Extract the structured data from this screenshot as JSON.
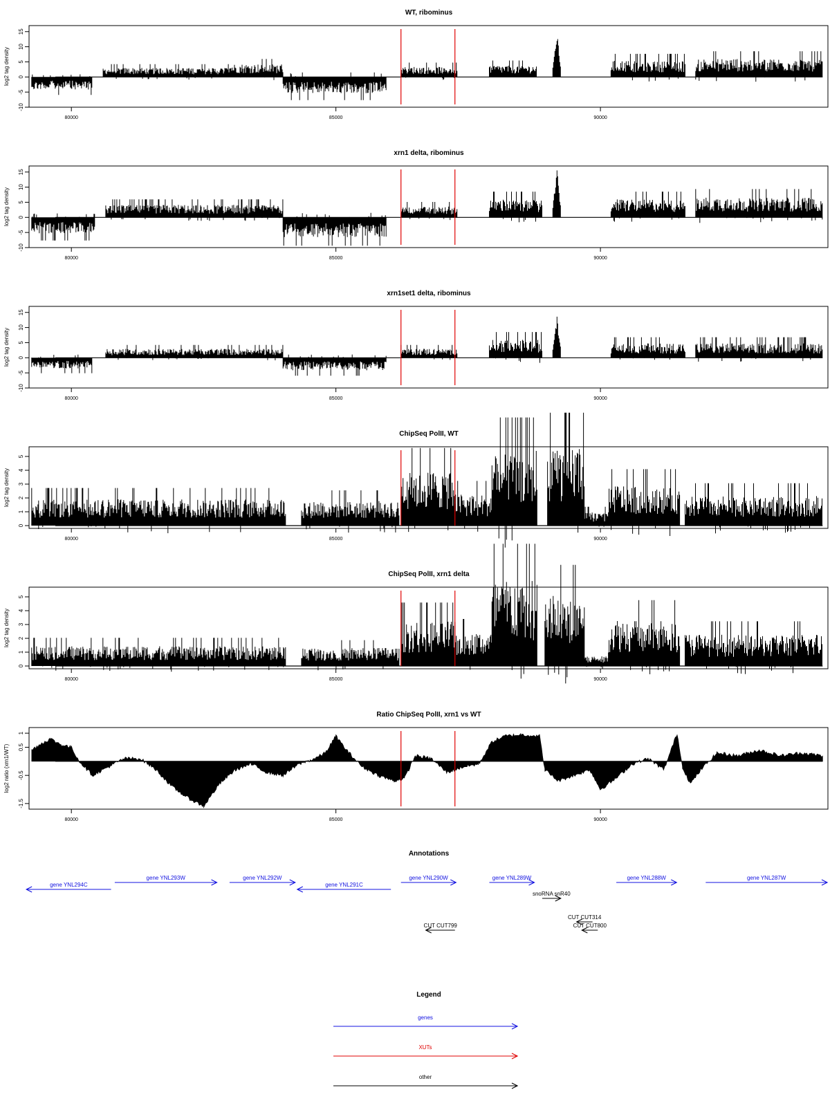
{
  "colors": {
    "signal": "#000000",
    "marker": "#e00000",
    "genes": "#1010e0",
    "xuts": "#e00000",
    "other": "#000000"
  },
  "chart_data": [
    {
      "type": "area",
      "title": "WT, ribominus",
      "ylabel": "log2 tag density",
      "xlim": [
        79200,
        94300
      ],
      "ylim": [
        -10,
        17
      ],
      "yticks": [
        -10,
        -5,
        0,
        5,
        10,
        15
      ],
      "xticks": [
        80000,
        85000,
        90000
      ],
      "vlines": [
        86230,
        87250
      ],
      "segments": [
        {
          "x": [
            79250,
            80400
          ],
          "v": -3.5
        },
        {
          "x": [
            80600,
            83000
          ],
          "v": 2.5
        },
        {
          "x": [
            83000,
            83900
          ],
          "v": 0.5
        },
        {
          "x": [
            82900,
            84000
          ],
          "v": 3.5
        },
        {
          "x": [
            84000,
            85950
          ],
          "v": -4.5
        },
        {
          "x": [
            86230,
            87300
          ],
          "v": 2.8
        },
        {
          "x": [
            87900,
            88800
          ],
          "v": 3.2
        },
        {
          "x": [
            89100,
            89250
          ],
          "v": 14
        },
        {
          "x": [
            90200,
            91600
          ],
          "v": 4.5
        },
        {
          "x": [
            91800,
            94200
          ],
          "v": 5
        }
      ]
    },
    {
      "type": "area",
      "title": "xrn1 delta, ribominus",
      "ylabel": "log2 tag density",
      "xlim": [
        79200,
        94300
      ],
      "ylim": [
        -10,
        17
      ],
      "yticks": [
        -10,
        -5,
        0,
        5,
        10,
        15
      ],
      "xticks": [
        80000,
        85000,
        90000
      ],
      "vlines": [
        86230,
        87250
      ],
      "segments": [
        {
          "x": [
            79250,
            80450
          ],
          "v": -4.5
        },
        {
          "x": [
            80650,
            84000
          ],
          "v": 3.5
        },
        {
          "x": [
            84000,
            85950
          ],
          "v": -5.5
        },
        {
          "x": [
            86230,
            87300
          ],
          "v": 3
        },
        {
          "x": [
            87900,
            88900
          ],
          "v": 5
        },
        {
          "x": [
            89100,
            89250
          ],
          "v": 15
        },
        {
          "x": [
            90200,
            91600
          ],
          "v": 5
        },
        {
          "x": [
            91800,
            94200
          ],
          "v": 5.5
        }
      ]
    },
    {
      "type": "area",
      "title": "xrn1set1 delta, ribominus",
      "ylabel": "log2 tag density",
      "xlim": [
        79200,
        94300
      ],
      "ylim": [
        -10,
        17
      ],
      "yticks": [
        -10,
        -5,
        0,
        5,
        10,
        15
      ],
      "xticks": [
        80000,
        85000,
        90000
      ],
      "vlines": [
        86230,
        87250
      ],
      "segments": [
        {
          "x": [
            79250,
            80400
          ],
          "v": -3
        },
        {
          "x": [
            80650,
            84000
          ],
          "v": 2.5
        },
        {
          "x": [
            84000,
            85950
          ],
          "v": -3.5
        },
        {
          "x": [
            86230,
            87300
          ],
          "v": 2.5
        },
        {
          "x": [
            87900,
            88900
          ],
          "v": 5
        },
        {
          "x": [
            89100,
            89250
          ],
          "v": 13
        },
        {
          "x": [
            90200,
            91600
          ],
          "v": 4
        },
        {
          "x": [
            91800,
            94200
          ],
          "v": 4
        }
      ]
    },
    {
      "type": "area",
      "title": "ChipSeq PolII, WT",
      "ylabel": "log2 tag density",
      "xlim": [
        79200,
        94300
      ],
      "ylim": [
        -0.2,
        5.7
      ],
      "yticks": [
        0,
        1,
        2,
        3,
        4,
        5
      ],
      "xticks": [
        80000,
        85000,
        90000
      ],
      "vlines": [
        86230,
        87250
      ],
      "segments": [
        {
          "x": [
            79250,
            84050
          ],
          "v": 1.6
        },
        {
          "x": [
            84350,
            86200
          ],
          "v": 1.5
        },
        {
          "x": [
            86230,
            87250
          ],
          "v": 3.3
        },
        {
          "x": [
            87250,
            87950
          ],
          "v": 1.9
        },
        {
          "x": [
            87950,
            88800
          ],
          "v": 4.6
        },
        {
          "x": [
            89000,
            89700
          ],
          "v": 4.8
        },
        {
          "x": [
            89700,
            90150
          ],
          "v": 0.8
        },
        {
          "x": [
            90150,
            91500
          ],
          "v": 2.4
        },
        {
          "x": [
            91600,
            94200
          ],
          "v": 1.8
        }
      ]
    },
    {
      "type": "area",
      "title": "ChipSeq PolII, xrn1 delta",
      "ylabel": "log2 tag density",
      "xlim": [
        79200,
        94300
      ],
      "ylim": [
        -0.2,
        5.7
      ],
      "yticks": [
        0,
        1,
        2,
        3,
        4,
        5
      ],
      "xticks": [
        80000,
        85000,
        90000
      ],
      "vlines": [
        86230,
        87250
      ],
      "segments": [
        {
          "x": [
            79250,
            84050
          ],
          "v": 1.2
        },
        {
          "x": [
            84350,
            86200
          ],
          "v": 1.1
        },
        {
          "x": [
            86230,
            87250
          ],
          "v": 2.7
        },
        {
          "x": [
            87250,
            87950
          ],
          "v": 2
        },
        {
          "x": [
            87950,
            88800
          ],
          "v": 5.2
        },
        {
          "x": [
            88950,
            89700
          ],
          "v": 4.3
        },
        {
          "x": [
            89700,
            90150
          ],
          "v": 0.6
        },
        {
          "x": [
            90150,
            91500
          ],
          "v": 2.8
        },
        {
          "x": [
            91600,
            94200
          ],
          "v": 1.9
        }
      ]
    },
    {
      "type": "area",
      "title": "Ratio ChipSeq PolII, xrn1 vs WT",
      "ylabel": "log2 ratio (xrn1/WT)",
      "xlim": [
        79200,
        94300
      ],
      "ylim": [
        -1.7,
        1.2
      ],
      "yticks": [
        -1.5,
        -0.5,
        0.5,
        1.0
      ],
      "xticks": [
        80000,
        85000,
        90000
      ],
      "vlines": [
        86230,
        87250
      ],
      "profile": [
        [
          79250,
          0.4
        ],
        [
          79400,
          0.6
        ],
        [
          79600,
          0.8
        ],
        [
          79800,
          0.6
        ],
        [
          80000,
          0.5
        ],
        [
          80150,
          0.0
        ],
        [
          80400,
          -0.5
        ],
        [
          80700,
          -0.2
        ],
        [
          81000,
          0.1
        ],
        [
          81300,
          0.1
        ],
        [
          81600,
          -0.3
        ],
        [
          81900,
          -0.9
        ],
        [
          82200,
          -1.3
        ],
        [
          82500,
          -1.6
        ],
        [
          82800,
          -0.8
        ],
        [
          83100,
          -0.3
        ],
        [
          83400,
          -0.1
        ],
        [
          83700,
          -0.4
        ],
        [
          84000,
          -0.5
        ],
        [
          84300,
          -0.1
        ],
        [
          84600,
          0.1
        ],
        [
          84800,
          0.3
        ],
        [
          85000,
          0.9
        ],
        [
          85200,
          0.4
        ],
        [
          85500,
          -0.2
        ],
        [
          85800,
          -0.5
        ],
        [
          86100,
          -0.7
        ],
        [
          86300,
          -0.6
        ],
        [
          86500,
          0.2
        ],
        [
          86800,
          0.1
        ],
        [
          87100,
          -0.4
        ],
        [
          87400,
          -0.2
        ],
        [
          87700,
          -0.1
        ],
        [
          87950,
          0.7
        ],
        [
          88200,
          0.9
        ],
        [
          88500,
          0.95
        ],
        [
          88850,
          0.9
        ],
        [
          88950,
          -0.3
        ],
        [
          89200,
          -0.7
        ],
        [
          89500,
          -0.5
        ],
        [
          89800,
          -0.3
        ],
        [
          90000,
          -1.0
        ],
        [
          90300,
          -0.6
        ],
        [
          90600,
          -0.1
        ],
        [
          90900,
          0.1
        ],
        [
          91200,
          -0.3
        ],
        [
          91450,
          1.0
        ],
        [
          91550,
          -0.2
        ],
        [
          91700,
          -0.8
        ],
        [
          91900,
          -0.3
        ],
        [
          92200,
          0.3
        ],
        [
          92600,
          0.2
        ],
        [
          93000,
          0.4
        ],
        [
          93400,
          0.2
        ],
        [
          93800,
          0.3
        ],
        [
          94200,
          0.2
        ]
      ]
    }
  ],
  "annotations": {
    "title": "Annotations",
    "genes": [
      {
        "label": "gene YNL294C",
        "start": 79150,
        "end": 80750,
        "strand": "-",
        "row": 2
      },
      {
        "label": "gene YNL293W",
        "start": 80820,
        "end": 82750,
        "strand": "+",
        "row": 1
      },
      {
        "label": "gene YNL292W",
        "start": 82990,
        "end": 84230,
        "strand": "+",
        "row": 1
      },
      {
        "label": "gene YNL291C",
        "start": 84270,
        "end": 86040,
        "strand": "-",
        "row": 2
      },
      {
        "label": "gene YNL290W",
        "start": 86230,
        "end": 87270,
        "strand": "+",
        "row": 1
      },
      {
        "label": "gene YNL289W",
        "start": 87900,
        "end": 88750,
        "strand": "+",
        "row": 1
      },
      {
        "label": "gene YNL288W",
        "start": 90300,
        "end": 91440,
        "strand": "+",
        "row": 1
      },
      {
        "label": "gene YNL287W",
        "start": 91990,
        "end": 94600,
        "strand": "+",
        "row": 1
      }
    ],
    "other": [
      {
        "label": "snoRNA snR40",
        "start": 88900,
        "end": 89250,
        "strand": "+",
        "row": 3
      },
      {
        "label": "CUT CUT314",
        "start": 89550,
        "end": 89850,
        "strand": "-",
        "row": 4
      },
      {
        "label": "CUT CUT799",
        "start": 86700,
        "end": 87250,
        "strand": "-",
        "row": 5
      },
      {
        "label": "CUT CUT800",
        "start": 89650,
        "end": 89950,
        "strand": "-",
        "row": 5
      }
    ]
  },
  "legend": {
    "title": "Legend",
    "items": [
      {
        "label": "genes",
        "key": "genes"
      },
      {
        "label": "XUTs",
        "key": "xuts"
      },
      {
        "label": "other",
        "key": "other"
      }
    ]
  }
}
